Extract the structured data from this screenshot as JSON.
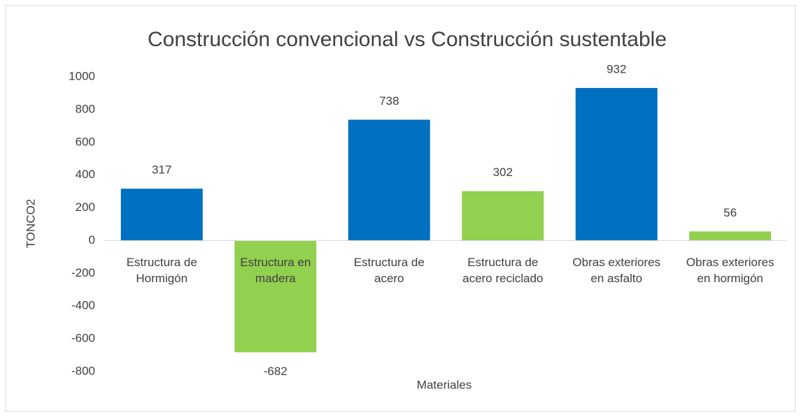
{
  "chart_data": {
    "type": "bar",
    "title": "Construcción convencional vs Construcción sustentable",
    "x_label": "Materiales",
    "y_label": "TONCO2",
    "categories": [
      "Estructura de\nHormigón",
      "Estructura en\nmadera",
      "Estructura de\nacero",
      "Estructura de\nacero reciclado",
      "Obras exteriores\nen asfalto",
      "Obras exteriores\nen hormigón"
    ],
    "values": [
      317,
      -682,
      738,
      302,
      932,
      56
    ],
    "colors": [
      "#0070c0",
      "#92d050",
      "#0070c0",
      "#92d050",
      "#0070c0",
      "#92d050"
    ],
    "ylim": [
      -800,
      1000
    ],
    "yticks": [
      -800,
      -600,
      -400,
      -200,
      0,
      200,
      400,
      600,
      800,
      1000
    ],
    "grid": false
  }
}
